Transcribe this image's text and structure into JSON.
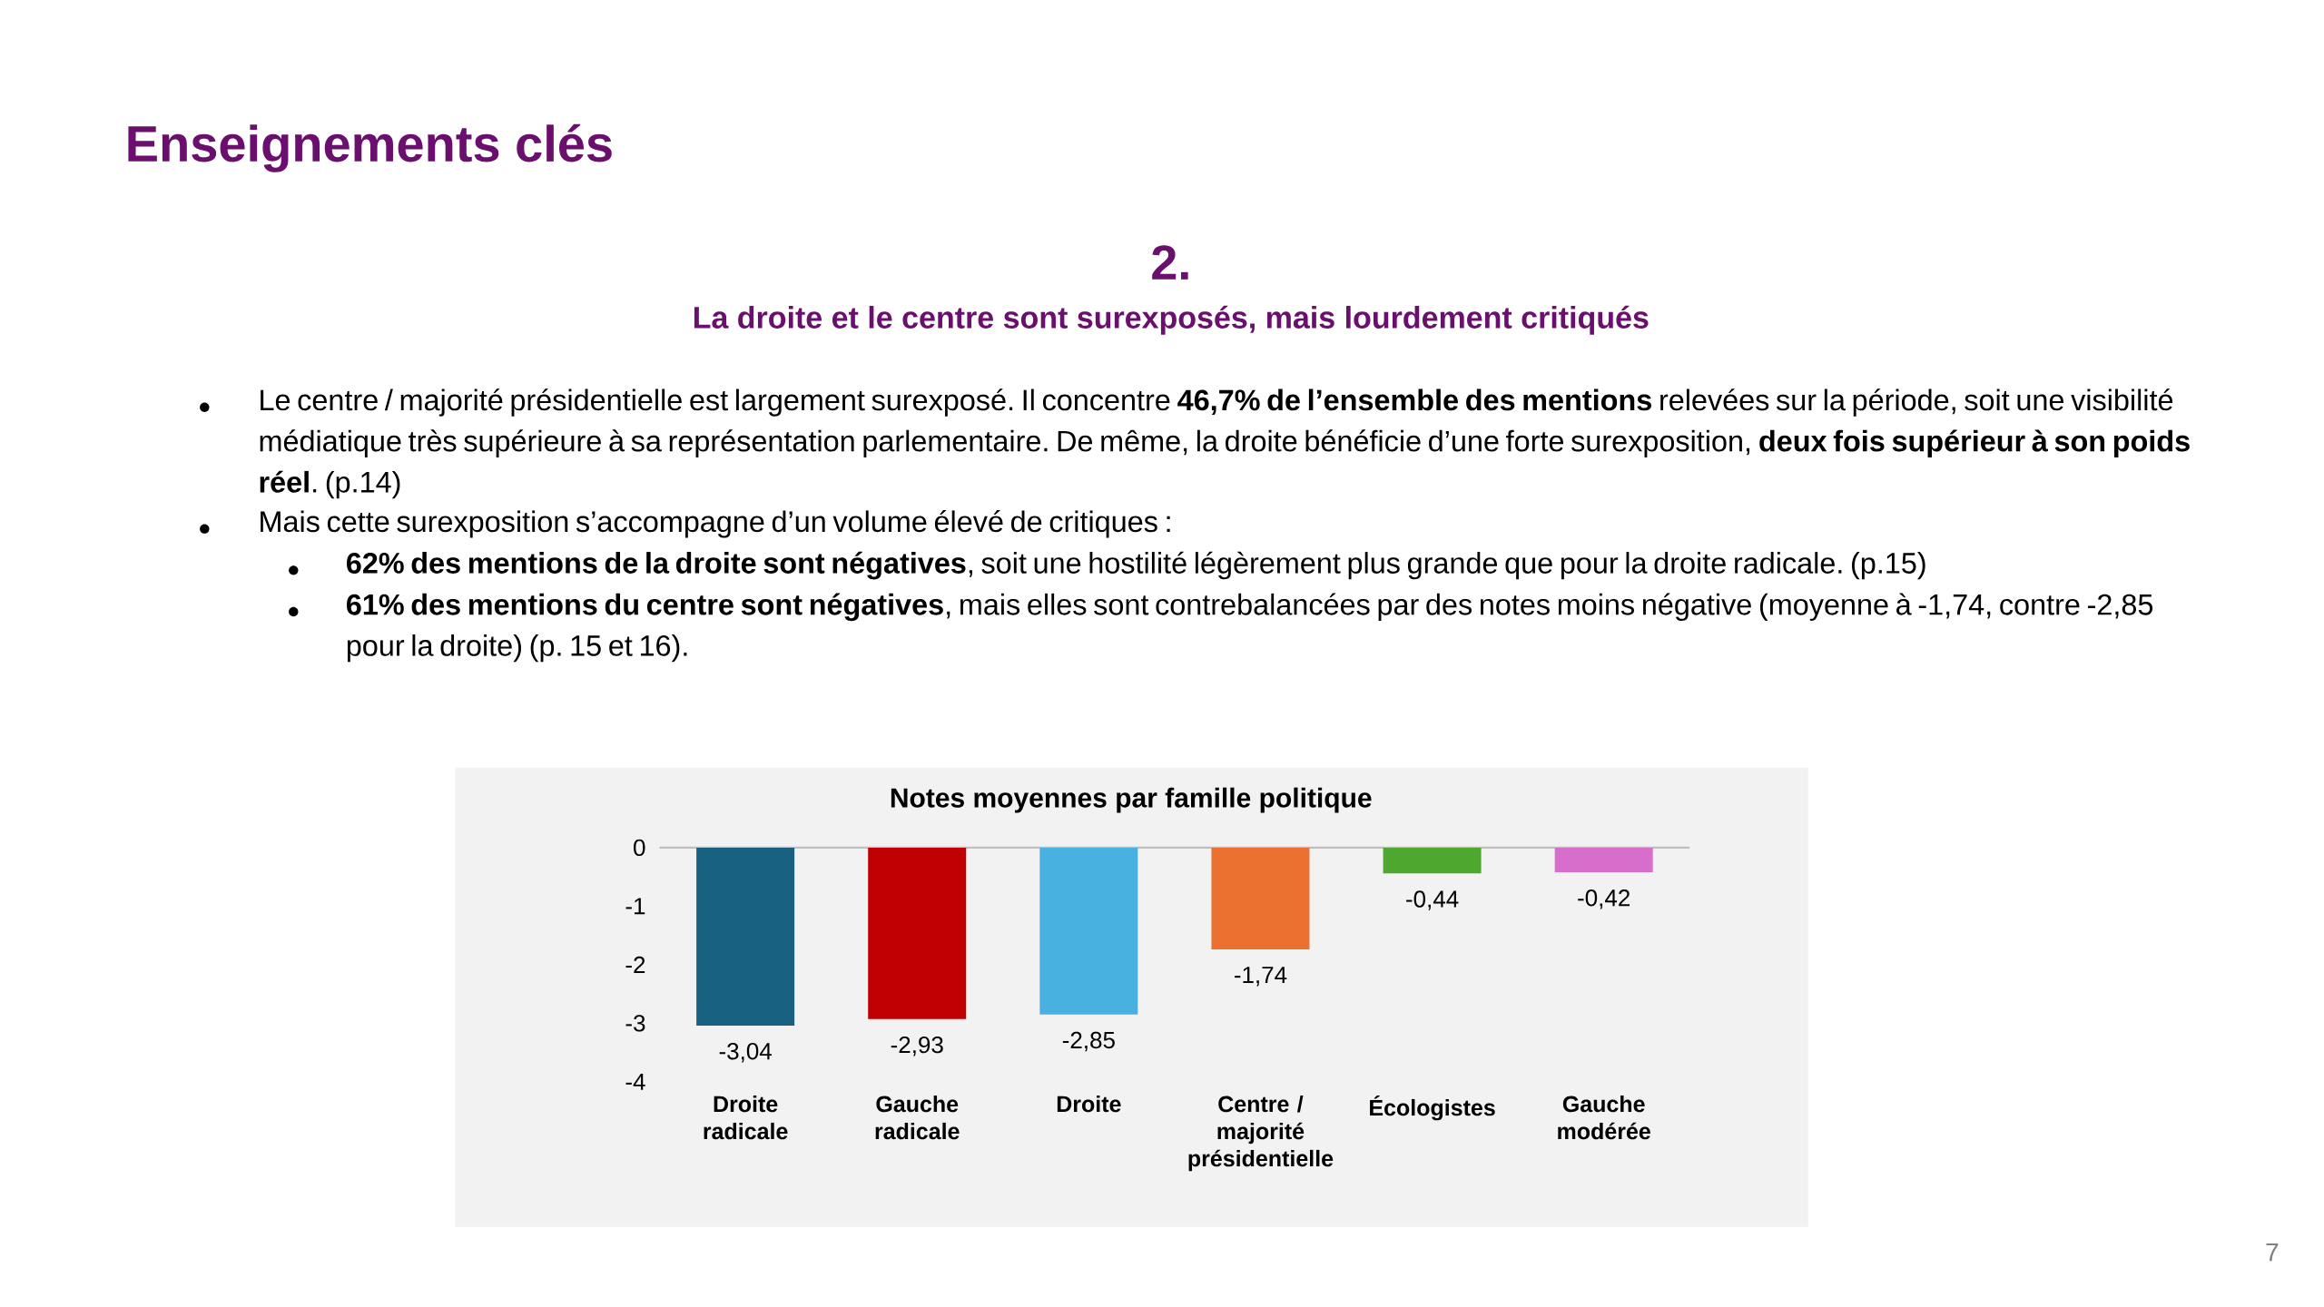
{
  "chart_data": {
    "type": "bar",
    "title": "Notes moyennes par famille politique",
    "categories": [
      "Droite radicale",
      "Gauche radicale",
      "Droite",
      "Centre / majorité présidentielle",
      "Écologistes",
      "Gauche modérée"
    ],
    "values": [
      -3.04,
      -2.93,
      -2.85,
      -1.74,
      -0.44,
      -0.42
    ],
    "colors": [
      "#17607f",
      "#c00000",
      "#48b1e0",
      "#ea7030",
      "#4ea72e",
      "#d86ecc"
    ],
    "value_labels": [
      "-3,04",
      "-2,93",
      "-2,85",
      "-1,74",
      "-0,44",
      "-0,42"
    ],
    "ylim": [
      -4,
      0
    ],
    "yticks": [
      -4,
      -3,
      -2,
      -1,
      0
    ],
    "annotations": [
      "Enseignements clés",
      "2.",
      "La droite et le centre sont surexposés, mais lourdement critiqués",
      "Le centre / majorité présidentielle est largement surexposé. Il concentre **46,7% de l’ensemble des mentions** relevées sur la période, soit une visibilité médiatique très supérieure à sa représentation parlementaire. De même, la droite bénéficie d’une forte surexposition, **deux fois supérieur à son poids réel**. (p.14)",
      "Mais cette surexposition s’accompagne d’un volume élevé de critiques :",
      "**62% des mentions de la droite sont négatives**, soit une hostilité légèrement plus grande que pour la droite radicale. (p.15)",
      "**61% des mentions du centre sont négatives**, mais elles sont contrebalancées par des notes moins négative (moyenne à -1,74, contre -2,85 pour la droite) (p. 15 et 16).",
      "7"
    ]
  }
}
